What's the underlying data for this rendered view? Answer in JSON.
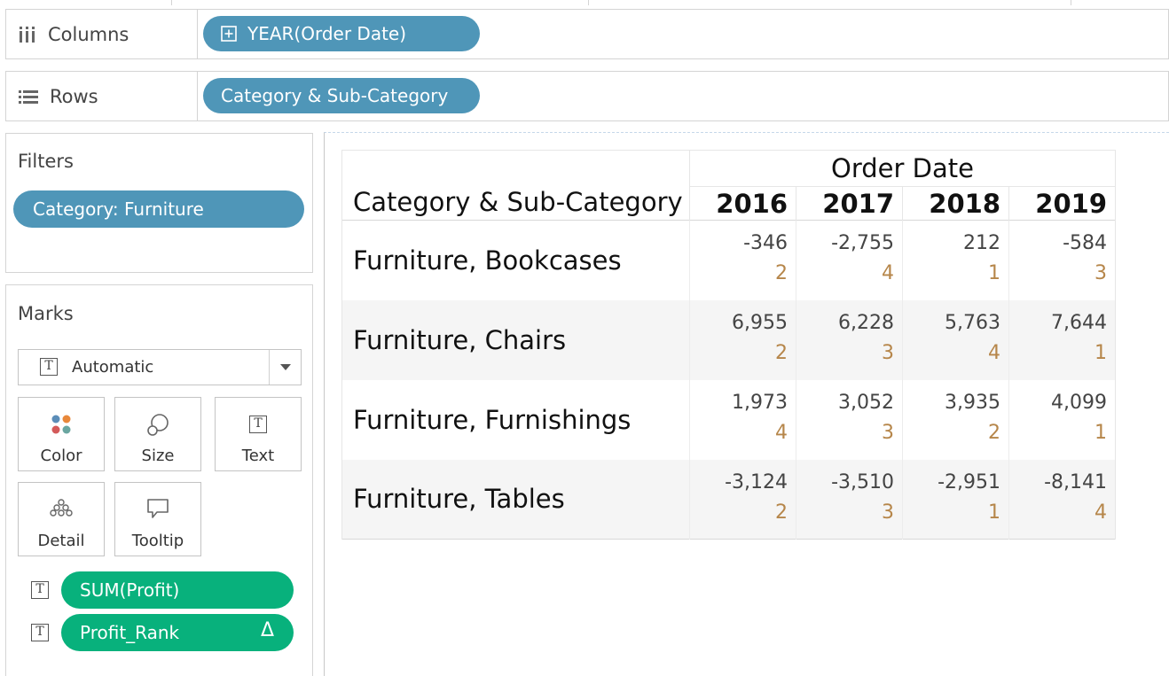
{
  "shelves": {
    "columns": {
      "label": "Columns",
      "pill": "YEAR(Order Date)"
    },
    "rows": {
      "label": "Rows",
      "pill": "Category & Sub-Category"
    }
  },
  "filters": {
    "title": "Filters",
    "pill": "Category: Furniture"
  },
  "marks": {
    "title": "Marks",
    "mark_type": "Automatic",
    "buttons": [
      {
        "label": "Color"
      },
      {
        "label": "Size"
      },
      {
        "label": "Text"
      },
      {
        "label": "Detail"
      },
      {
        "label": "Tooltip"
      }
    ],
    "fields": [
      {
        "label": "SUM(Profit)"
      },
      {
        "label": "Profit_Rank",
        "badge": "Δ"
      }
    ],
    "colors": {
      "blue_pill": "#4f96b8",
      "green_pill": "#08b17c",
      "rank_text": "#b6864a"
    }
  },
  "crosstab": {
    "column_group": "Order Date",
    "row_header": "Category & Sub-Category",
    "years": [
      "2016",
      "2017",
      "2018",
      "2019"
    ],
    "rows": [
      {
        "label": "Furniture, Bookcases",
        "profit": [
          "-346",
          "-2,755",
          "212",
          "-584"
        ],
        "rank": [
          "2",
          "4",
          "1",
          "3"
        ]
      },
      {
        "label": "Furniture, Chairs",
        "profit": [
          "6,955",
          "6,228",
          "5,763",
          "7,644"
        ],
        "rank": [
          "2",
          "3",
          "4",
          "1"
        ]
      },
      {
        "label": "Furniture, Furnishings",
        "profit": [
          "1,973",
          "3,052",
          "3,935",
          "4,099"
        ],
        "rank": [
          "4",
          "3",
          "2",
          "1"
        ]
      },
      {
        "label": "Furniture, Tables",
        "profit": [
          "-3,124",
          "-3,510",
          "-2,951",
          "-8,141"
        ],
        "rank": [
          "2",
          "3",
          "1",
          "4"
        ]
      }
    ]
  }
}
